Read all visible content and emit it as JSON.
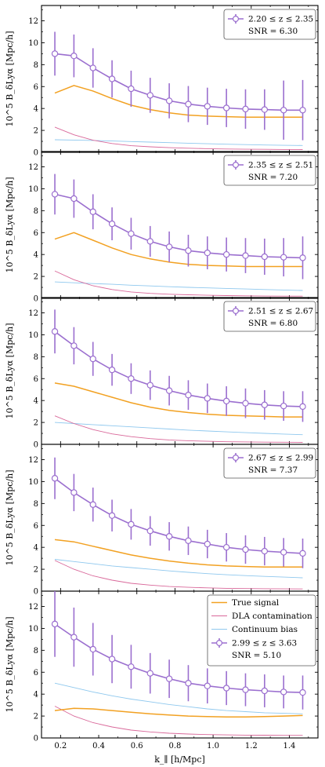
{
  "figure": {
    "xlabel": "k_∥ [h/Mpc]",
    "ylabel": "10^5 B_δLyα [Mpc/h]"
  },
  "colors": {
    "measurement": "#9b6fcf",
    "true_signal": "#f2a122",
    "dla": "#d9689a",
    "continuum": "#8fc8ee"
  },
  "chart_data": [
    {
      "type": "line",
      "x": [
        0.17,
        0.27,
        0.37,
        0.47,
        0.57,
        0.67,
        0.77,
        0.87,
        0.97,
        1.07,
        1.17,
        1.27,
        1.37,
        1.47
      ],
      "xlim": [
        0.1,
        1.55
      ],
      "ylim": [
        0,
        13.4
      ],
      "xticks": [
        0.2,
        0.4,
        0.6,
        0.8,
        1.0,
        1.2,
        1.4
      ],
      "yticks": [
        0,
        2,
        4,
        6,
        8,
        10,
        12
      ],
      "series": [
        {
          "kind": "measurement",
          "name": "2.20 ≤ z ≤ 2.35",
          "values": [
            9.0,
            8.8,
            7.7,
            6.7,
            5.8,
            5.2,
            4.7,
            4.4,
            4.2,
            4.05,
            3.95,
            3.9,
            3.85,
            3.85
          ],
          "errors": [
            2.0,
            1.95,
            1.8,
            1.7,
            1.65,
            1.6,
            1.6,
            1.65,
            1.7,
            1.75,
            1.8,
            1.85,
            2.7,
            2.75
          ]
        },
        {
          "kind": "true_signal",
          "values": [
            5.4,
            6.1,
            5.6,
            4.9,
            4.3,
            3.9,
            3.6,
            3.4,
            3.3,
            3.25,
            3.2,
            3.2,
            3.2,
            3.2
          ]
        },
        {
          "kind": "dla",
          "values": [
            2.3,
            1.6,
            1.1,
            0.8,
            0.6,
            0.5,
            0.42,
            0.37,
            0.33,
            0.3,
            0.28,
            0.27,
            0.26,
            0.25
          ]
        },
        {
          "kind": "continuum",
          "values": [
            1.15,
            1.12,
            1.08,
            1.03,
            0.98,
            0.93,
            0.88,
            0.83,
            0.78,
            0.74,
            0.7,
            0.67,
            0.64,
            0.62
          ]
        }
      ],
      "legend": {
        "label": "2.20 ≤ z ≤ 2.35",
        "snr": "SNR = 6.30"
      }
    },
    {
      "type": "line",
      "x": [
        0.17,
        0.27,
        0.37,
        0.47,
        0.57,
        0.67,
        0.77,
        0.87,
        0.97,
        1.07,
        1.17,
        1.27,
        1.37,
        1.47
      ],
      "xlim": [
        0.1,
        1.55
      ],
      "ylim": [
        0,
        13.4
      ],
      "xticks": [
        0.2,
        0.4,
        0.6,
        0.8,
        1.0,
        1.2,
        1.4
      ],
      "yticks": [
        0,
        2,
        4,
        6,
        8,
        10,
        12
      ],
      "series": [
        {
          "kind": "measurement",
          "name": "2.35 ≤ z ≤ 2.51",
          "values": [
            9.5,
            9.1,
            7.9,
            6.8,
            5.9,
            5.2,
            4.7,
            4.35,
            4.15,
            4.0,
            3.9,
            3.8,
            3.75,
            3.7
          ],
          "errors": [
            1.85,
            1.75,
            1.6,
            1.5,
            1.45,
            1.4,
            1.4,
            1.45,
            1.5,
            1.55,
            1.6,
            1.65,
            1.75,
            1.95
          ]
        },
        {
          "kind": "true_signal",
          "values": [
            5.4,
            6.0,
            5.3,
            4.6,
            4.0,
            3.6,
            3.3,
            3.1,
            3.0,
            2.95,
            2.9,
            2.9,
            2.9,
            2.9
          ]
        },
        {
          "kind": "dla",
          "values": [
            2.5,
            1.7,
            1.15,
            0.8,
            0.58,
            0.45,
            0.37,
            0.32,
            0.28,
            0.25,
            0.23,
            0.21,
            0.2,
            0.2
          ]
        },
        {
          "kind": "continuum",
          "values": [
            1.5,
            1.42,
            1.35,
            1.28,
            1.2,
            1.13,
            1.06,
            1.0,
            0.95,
            0.9,
            0.85,
            0.8,
            0.76,
            0.72
          ]
        }
      ],
      "legend": {
        "label": "2.35 ≤ z ≤ 2.51",
        "snr": "SNR = 7.20"
      }
    },
    {
      "type": "line",
      "x": [
        0.17,
        0.27,
        0.37,
        0.47,
        0.57,
        0.67,
        0.77,
        0.87,
        0.97,
        1.07,
        1.17,
        1.27,
        1.37,
        1.47
      ],
      "xlim": [
        0.1,
        1.55
      ],
      "ylim": [
        0,
        13.4
      ],
      "xticks": [
        0.2,
        0.4,
        0.6,
        0.8,
        1.0,
        1.2,
        1.4
      ],
      "yticks": [
        0,
        2,
        4,
        6,
        8,
        10,
        12
      ],
      "series": [
        {
          "kind": "measurement",
          "name": "2.51 ≤ z ≤ 2.67",
          "values": [
            10.3,
            9.0,
            7.8,
            6.8,
            6.0,
            5.4,
            4.9,
            4.5,
            4.2,
            3.95,
            3.75,
            3.6,
            3.5,
            3.45
          ],
          "errors": [
            2.0,
            1.7,
            1.55,
            1.45,
            1.4,
            1.35,
            1.35,
            1.35,
            1.35,
            1.35,
            1.35,
            1.35,
            1.35,
            1.4
          ]
        },
        {
          "kind": "true_signal",
          "values": [
            5.6,
            5.3,
            4.8,
            4.3,
            3.8,
            3.4,
            3.1,
            2.9,
            2.75,
            2.65,
            2.6,
            2.55,
            2.5,
            2.5
          ]
        },
        {
          "kind": "dla",
          "values": [
            2.6,
            1.9,
            1.35,
            0.95,
            0.7,
            0.52,
            0.4,
            0.33,
            0.28,
            0.24,
            0.22,
            0.2,
            0.19,
            0.18
          ]
        },
        {
          "kind": "continuum",
          "values": [
            2.0,
            1.9,
            1.8,
            1.7,
            1.6,
            1.5,
            1.4,
            1.3,
            1.22,
            1.14,
            1.07,
            1.0,
            0.94,
            0.88
          ]
        }
      ],
      "legend": {
        "label": "2.51 ≤ z ≤ 2.67",
        "snr": "SNR = 6.80"
      }
    },
    {
      "type": "line",
      "x": [
        0.17,
        0.27,
        0.37,
        0.47,
        0.57,
        0.67,
        0.77,
        0.87,
        0.97,
        1.07,
        1.17,
        1.27,
        1.37,
        1.47
      ],
      "xlim": [
        0.1,
        1.55
      ],
      "ylim": [
        0,
        13.4
      ],
      "xticks": [
        0.2,
        0.4,
        0.6,
        0.8,
        1.0,
        1.2,
        1.4
      ],
      "yticks": [
        0,
        2,
        4,
        6,
        8,
        10,
        12
      ],
      "series": [
        {
          "kind": "measurement",
          "name": "2.67 ≤ z ≤ 2.99",
          "values": [
            10.3,
            9.0,
            7.9,
            6.9,
            6.1,
            5.5,
            5.0,
            4.6,
            4.3,
            4.0,
            3.8,
            3.65,
            3.55,
            3.45
          ],
          "errors": [
            1.9,
            1.7,
            1.55,
            1.45,
            1.4,
            1.35,
            1.3,
            1.3,
            1.3,
            1.3,
            1.3,
            1.3,
            1.3,
            1.35
          ]
        },
        {
          "kind": "true_signal",
          "values": [
            4.7,
            4.5,
            4.1,
            3.7,
            3.3,
            3.0,
            2.75,
            2.55,
            2.4,
            2.3,
            2.25,
            2.2,
            2.2,
            2.2
          ]
        },
        {
          "kind": "dla",
          "values": [
            2.8,
            2.0,
            1.4,
            1.0,
            0.72,
            0.55,
            0.42,
            0.35,
            0.3,
            0.26,
            0.24,
            0.22,
            0.21,
            0.2
          ]
        },
        {
          "kind": "continuum",
          "values": [
            2.9,
            2.7,
            2.5,
            2.3,
            2.15,
            2.0,
            1.85,
            1.72,
            1.6,
            1.5,
            1.42,
            1.35,
            1.28,
            1.22
          ]
        }
      ],
      "legend": {
        "label": "2.67 ≤ z ≤ 2.99",
        "snr": "SNR = 7.37"
      }
    },
    {
      "type": "line",
      "x": [
        0.17,
        0.27,
        0.37,
        0.47,
        0.57,
        0.67,
        0.77,
        0.87,
        0.97,
        1.07,
        1.17,
        1.27,
        1.37,
        1.47
      ],
      "xlim": [
        0.1,
        1.55
      ],
      "ylim": [
        0,
        13.4
      ],
      "xticks": [
        0.2,
        0.4,
        0.6,
        0.8,
        1.0,
        1.2,
        1.4
      ],
      "yticks": [
        0,
        2,
        4,
        6,
        8,
        10,
        12
      ],
      "series": [
        {
          "kind": "measurement",
          "name": "2.99 ≤ z ≤ 3.63",
          "values": [
            10.4,
            9.2,
            8.1,
            7.2,
            6.5,
            5.9,
            5.4,
            5.0,
            4.75,
            4.55,
            4.4,
            4.3,
            4.2,
            4.15
          ],
          "errors": [
            3.0,
            2.7,
            2.4,
            2.2,
            2.0,
            1.85,
            1.75,
            1.65,
            1.6,
            1.55,
            1.5,
            1.5,
            1.5,
            1.55
          ]
        },
        {
          "kind": "true_signal",
          "values": [
            2.5,
            2.7,
            2.65,
            2.5,
            2.35,
            2.2,
            2.1,
            2.0,
            1.95,
            1.92,
            1.92,
            1.95,
            2.0,
            2.05
          ]
        },
        {
          "kind": "dla",
          "values": [
            2.9,
            2.0,
            1.4,
            1.0,
            0.72,
            0.55,
            0.43,
            0.36,
            0.31,
            0.28,
            0.26,
            0.25,
            0.24,
            0.24
          ]
        },
        {
          "kind": "continuum",
          "values": [
            5.0,
            4.6,
            4.2,
            3.85,
            3.55,
            3.3,
            3.05,
            2.85,
            2.65,
            2.5,
            2.4,
            2.3,
            2.25,
            2.2
          ]
        }
      ],
      "legend": {
        "label": "2.99 ≤ z ≤ 3.63",
        "snr": "SNR = 5.10",
        "true_signal": "True signal",
        "dla": "DLA contamination",
        "continuum": "Continuum bias"
      }
    }
  ]
}
